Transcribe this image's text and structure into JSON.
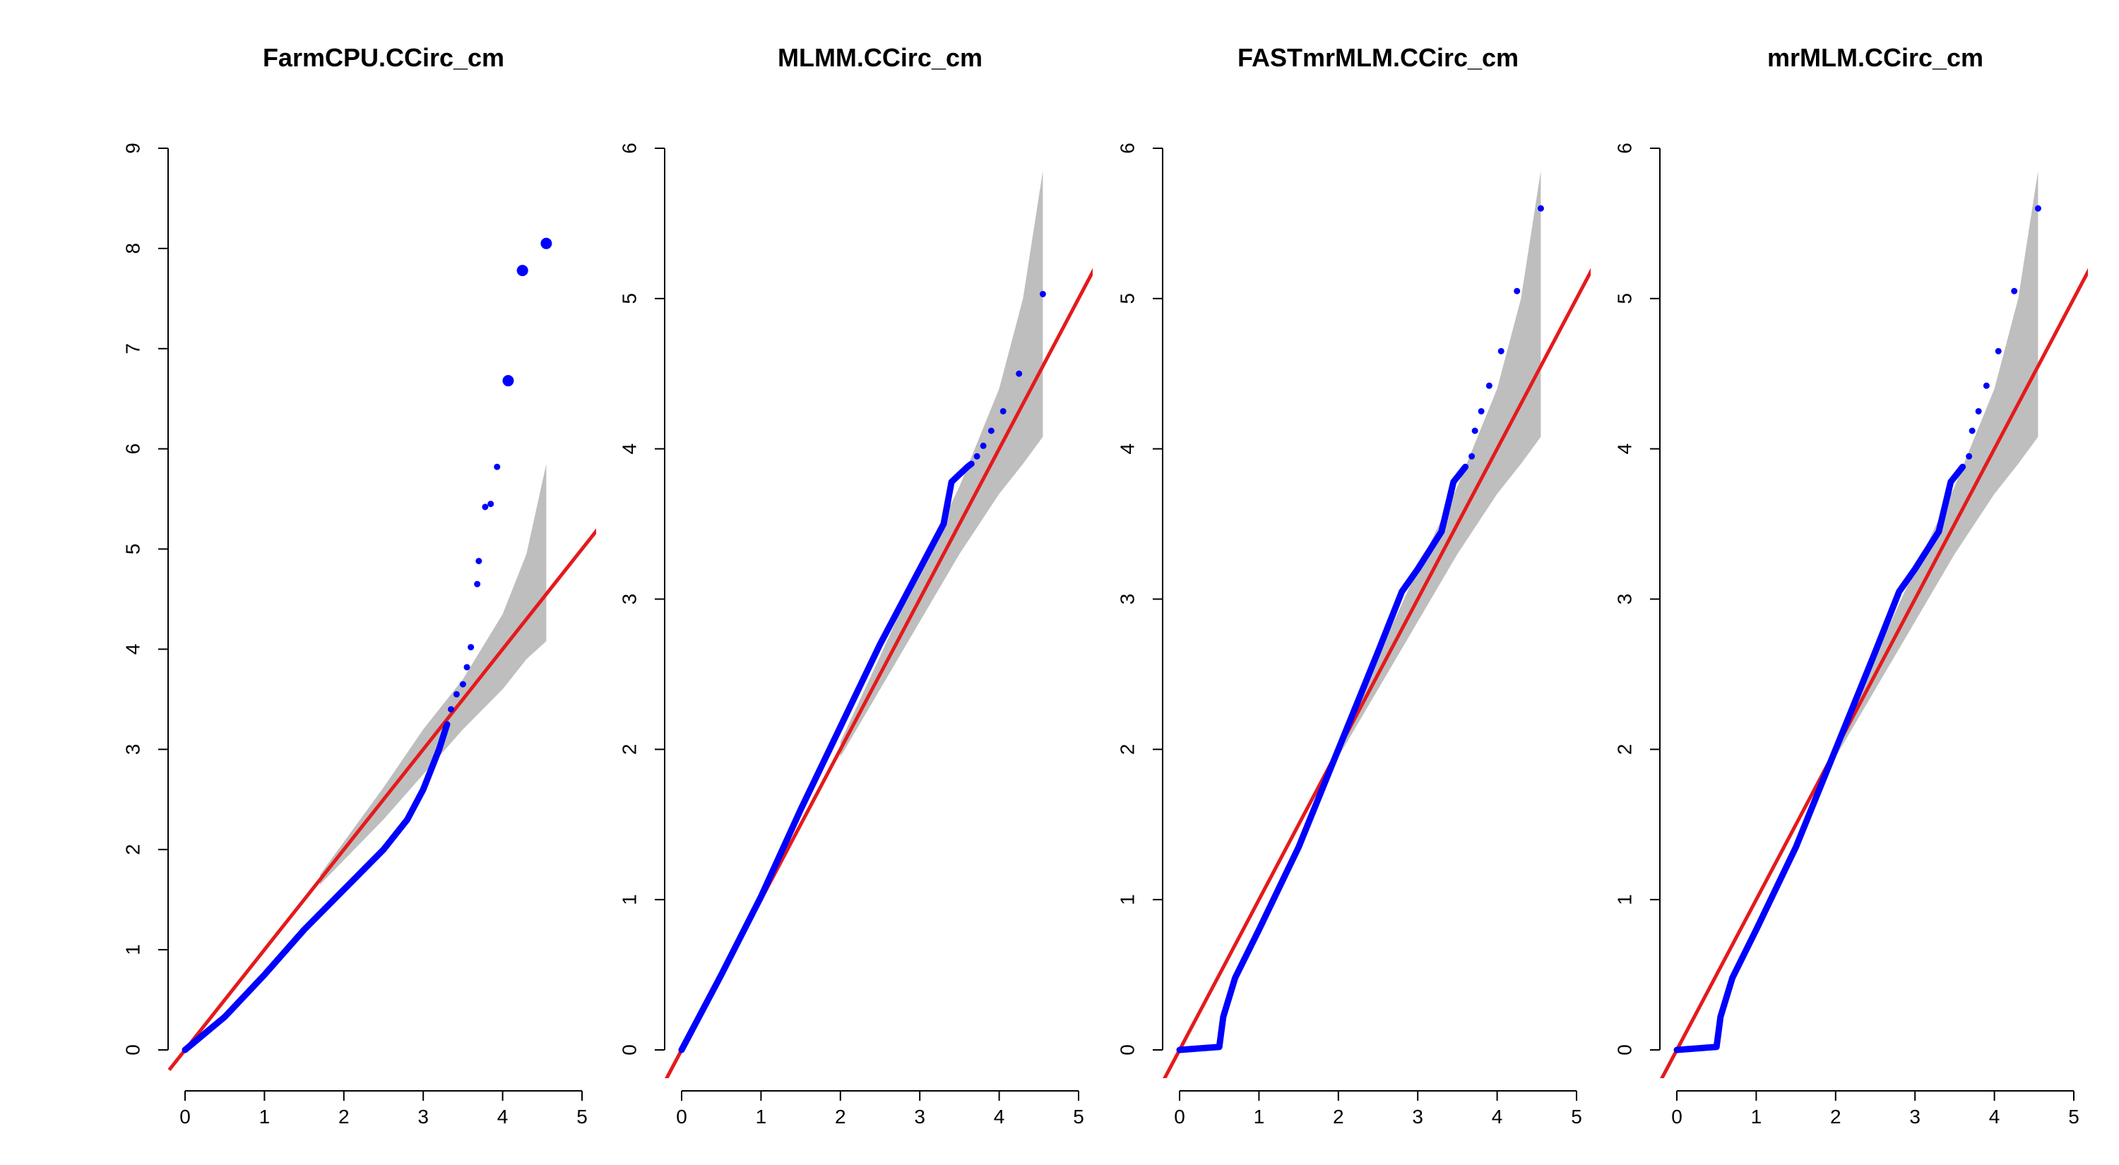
{
  "chart_data": [
    {
      "type": "scatter",
      "title": "FarmCPU.CCirc_cm",
      "xlabel": "",
      "ylabel": "",
      "xlim": [
        0,
        5
      ],
      "ylim": [
        0,
        9
      ],
      "x_ticks": [
        "0",
        "1",
        "2",
        "3",
        "4",
        "5"
      ],
      "y_ticks": [
        "0",
        "1",
        "2",
        "3",
        "4",
        "5",
        "6",
        "7",
        "8",
        "9"
      ],
      "reference_line": {
        "slope": 1,
        "intercept": 0,
        "color": "#e41a1c"
      },
      "confidence_band": {
        "color": "#bebebe",
        "x": [
          1.7,
          2.5,
          3.0,
          3.5,
          4.0,
          4.3,
          4.55
        ],
        "lower": [
          1.65,
          2.3,
          2.75,
          3.2,
          3.6,
          3.9,
          4.08
        ],
        "upper": [
          1.75,
          2.62,
          3.2,
          3.7,
          4.35,
          4.95,
          5.85
        ]
      },
      "series": [
        {
          "color": "#0000ff",
          "curve": [
            [
              0,
              0
            ],
            [
              0.5,
              0.33
            ],
            [
              1.0,
              0.75
            ],
            [
              1.5,
              1.2
            ],
            [
              2.0,
              1.6
            ],
            [
              2.5,
              2.0
            ],
            [
              2.8,
              2.3
            ],
            [
              3.0,
              2.6
            ],
            [
              3.2,
              3.0
            ],
            [
              3.3,
              3.25
            ]
          ],
          "points": [
            [
              3.35,
              3.4
            ],
            [
              3.42,
              3.55
            ],
            [
              3.5,
              3.65
            ],
            [
              3.55,
              3.82
            ],
            [
              3.6,
              4.02
            ],
            [
              3.68,
              4.65
            ],
            [
              3.7,
              4.88
            ],
            [
              3.78,
              5.42
            ],
            [
              3.85,
              5.45
            ],
            [
              3.93,
              5.82
            ],
            [
              4.07,
              6.68
            ],
            [
              4.25,
              7.78
            ],
            [
              4.55,
              8.05
            ]
          ]
        }
      ]
    },
    {
      "type": "scatter",
      "title": "MLMM.CCirc_cm",
      "xlabel": "",
      "ylabel": "",
      "xlim": [
        0,
        5
      ],
      "ylim": [
        0,
        6
      ],
      "x_ticks": [
        "0",
        "1",
        "2",
        "3",
        "4",
        "5"
      ],
      "y_ticks": [
        "0",
        "1",
        "2",
        "3",
        "4",
        "5",
        "6"
      ],
      "reference_line": {
        "slope": 1,
        "intercept": 0,
        "color": "#e41a1c"
      },
      "confidence_band": {
        "color": "#bebebe",
        "x": [
          2.0,
          2.5,
          3.0,
          3.5,
          4.0,
          4.3,
          4.55
        ],
        "lower": [
          1.95,
          2.4,
          2.85,
          3.3,
          3.7,
          3.9,
          4.08
        ],
        "upper": [
          2.05,
          2.62,
          3.2,
          3.75,
          4.4,
          5.0,
          5.85
        ]
      },
      "series": [
        {
          "color": "#0000ff",
          "curve": [
            [
              0,
              0
            ],
            [
              0.5,
              0.5
            ],
            [
              1.0,
              1.02
            ],
            [
              1.5,
              1.6
            ],
            [
              2.0,
              2.15
            ],
            [
              2.5,
              2.7
            ],
            [
              3.0,
              3.2
            ],
            [
              3.3,
              3.5
            ],
            [
              3.4,
              3.78
            ],
            [
              3.6,
              3.88
            ],
            [
              3.65,
              3.9
            ]
          ],
          "points": [
            [
              3.72,
              3.95
            ],
            [
              3.8,
              4.02
            ],
            [
              3.9,
              4.12
            ],
            [
              4.05,
              4.25
            ],
            [
              4.25,
              4.5
            ],
            [
              4.55,
              5.03
            ]
          ]
        }
      ]
    },
    {
      "type": "scatter",
      "title": "FASTmrMLM.CCirc_cm",
      "xlabel": "",
      "ylabel": "",
      "xlim": [
        0,
        5
      ],
      "ylim": [
        0,
        6
      ],
      "x_ticks": [
        "0",
        "1",
        "2",
        "3",
        "4",
        "5"
      ],
      "y_ticks": [
        "0",
        "1",
        "2",
        "3",
        "4",
        "5",
        "6"
      ],
      "reference_line": {
        "slope": 1,
        "intercept": 0,
        "color": "#e41a1c"
      },
      "confidence_band": {
        "color": "#bebebe",
        "x": [
          2.0,
          2.5,
          3.0,
          3.5,
          4.0,
          4.3,
          4.55
        ],
        "lower": [
          1.95,
          2.4,
          2.85,
          3.3,
          3.7,
          3.9,
          4.08
        ],
        "upper": [
          2.05,
          2.62,
          3.2,
          3.75,
          4.4,
          5.0,
          5.85
        ]
      },
      "series": [
        {
          "color": "#0000ff",
          "curve": [
            [
              0,
              0
            ],
            [
              0.5,
              0.02
            ],
            [
              0.52,
              0.1
            ],
            [
              0.55,
              0.22
            ],
            [
              0.7,
              0.48
            ],
            [
              1.0,
              0.8
            ],
            [
              1.5,
              1.35
            ],
            [
              2.0,
              2.0
            ],
            [
              2.5,
              2.65
            ],
            [
              2.8,
              3.05
            ],
            [
              3.0,
              3.2
            ],
            [
              3.3,
              3.45
            ],
            [
              3.45,
              3.78
            ],
            [
              3.6,
              3.88
            ]
          ],
          "points": [
            [
              3.68,
              3.95
            ],
            [
              3.72,
              4.12
            ],
            [
              3.8,
              4.25
            ],
            [
              3.9,
              4.42
            ],
            [
              4.05,
              4.65
            ],
            [
              4.25,
              5.05
            ],
            [
              4.55,
              5.6
            ]
          ]
        }
      ]
    },
    {
      "type": "scatter",
      "title": "mrMLM.CCirc_cm",
      "xlabel": "",
      "ylabel": "",
      "xlim": [
        0,
        5
      ],
      "ylim": [
        0,
        6
      ],
      "x_ticks": [
        "0",
        "1",
        "2",
        "3",
        "4",
        "5"
      ],
      "y_ticks": [
        "0",
        "1",
        "2",
        "3",
        "4",
        "5",
        "6"
      ],
      "reference_line": {
        "slope": 1,
        "intercept": 0,
        "color": "#e41a1c"
      },
      "confidence_band": {
        "color": "#bebebe",
        "x": [
          2.0,
          2.5,
          3.0,
          3.5,
          4.0,
          4.3,
          4.55
        ],
        "lower": [
          1.95,
          2.4,
          2.85,
          3.3,
          3.7,
          3.9,
          4.08
        ],
        "upper": [
          2.05,
          2.62,
          3.2,
          3.75,
          4.4,
          5.0,
          5.85
        ]
      },
      "series": [
        {
          "color": "#0000ff",
          "curve": [
            [
              0,
              0
            ],
            [
              0.5,
              0.02
            ],
            [
              0.52,
              0.1
            ],
            [
              0.55,
              0.22
            ],
            [
              0.7,
              0.48
            ],
            [
              1.0,
              0.8
            ],
            [
              1.5,
              1.35
            ],
            [
              2.0,
              2.0
            ],
            [
              2.5,
              2.65
            ],
            [
              2.8,
              3.05
            ],
            [
              3.0,
              3.2
            ],
            [
              3.3,
              3.45
            ],
            [
              3.45,
              3.78
            ],
            [
              3.6,
              3.88
            ]
          ],
          "points": [
            [
              3.68,
              3.95
            ],
            [
              3.72,
              4.12
            ],
            [
              3.8,
              4.25
            ],
            [
              3.9,
              4.42
            ],
            [
              4.05,
              4.65
            ],
            [
              4.25,
              5.05
            ],
            [
              4.55,
              5.6
            ]
          ]
        }
      ]
    }
  ]
}
